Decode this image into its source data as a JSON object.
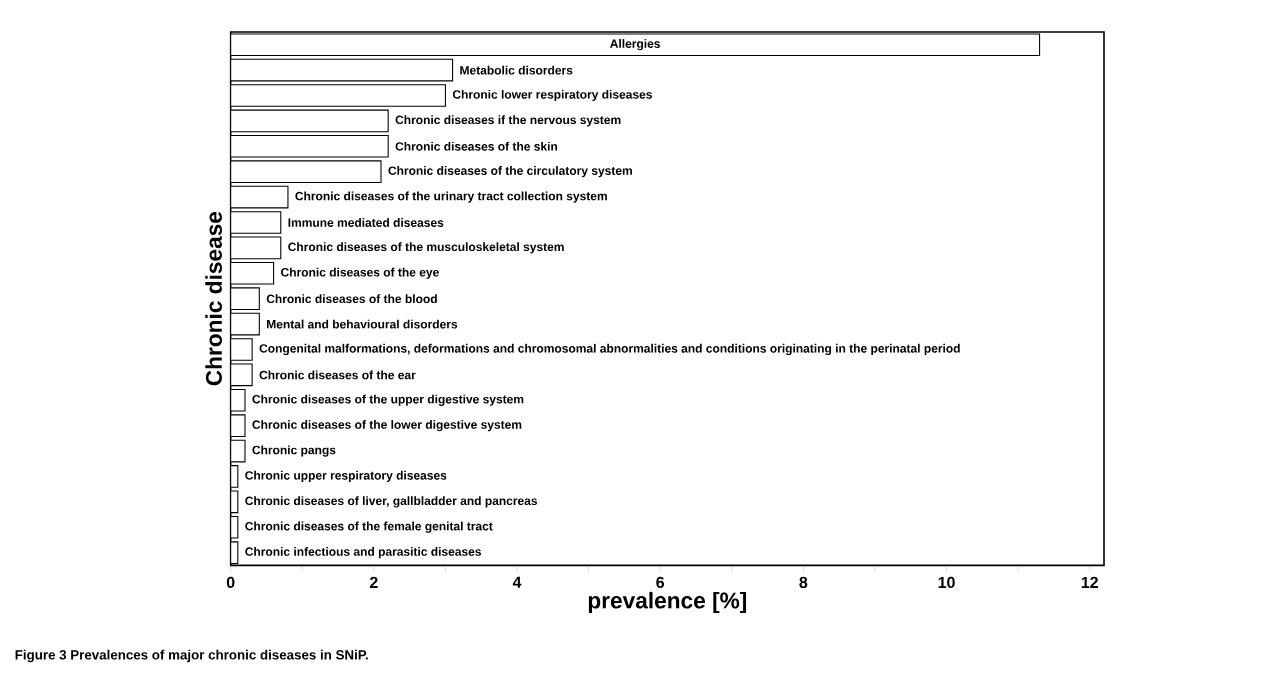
{
  "chart_data": {
    "type": "bar",
    "orientation": "horizontal",
    "xlabel": "prevalence [%]",
    "ylabel": "Chronic disease",
    "categories": [
      "Allergies",
      "Metabolic disorders",
      "Chronic lower respiratory diseases",
      "Chronic diseases if the nervous system",
      "Chronic diseases of the skin",
      "Chronic diseases of the circulatory system",
      "Chronic diseases of the urinary tract collection system",
      "Immune mediated diseases",
      "Chronic diseases of the musculoskeletal system",
      "Chronic diseases of the eye",
      "Chronic diseases of the blood",
      "Mental and behavioural disorders",
      "Congenital malformations, deformations and chromosomal abnormalities and conditions originating in the perinatal period",
      "Chronic diseases of the ear",
      "Chronic diseases of the upper digestive system",
      "Chronic diseases of the lower digestive system",
      "Chronic pangs",
      "Chronic upper respiratory diseases",
      "Chronic diseases of liver, gallbladder and pancreas",
      "Chronic diseases of the female genital tract",
      "Chronic infectious and parasitic diseases"
    ],
    "values": [
      11.3,
      3.1,
      3.0,
      2.2,
      2.2,
      2.1,
      0.8,
      0.7,
      0.7,
      0.6,
      0.4,
      0.4,
      0.3,
      0.3,
      0.2,
      0.2,
      0.2,
      0.1,
      0.1,
      0.1,
      0.1
    ],
    "color": "#ffffff",
    "xlim": [
      0,
      12.2
    ],
    "xticks": [
      0,
      {
        "value": 1,
        "label": null
      },
      2,
      {
        "value": 3,
        "label": null
      },
      4,
      {
        "value": 5,
        "label": null
      },
      6,
      {
        "value": 7,
        "label": null
      },
      8,
      {
        "value": 9,
        "label": null
      },
      10,
      {
        "value": 11,
        "label": null
      },
      12
    ],
    "annotations": [
      "Figure 3 Prevalences of major chronic diseases in SNiP."
    ]
  }
}
